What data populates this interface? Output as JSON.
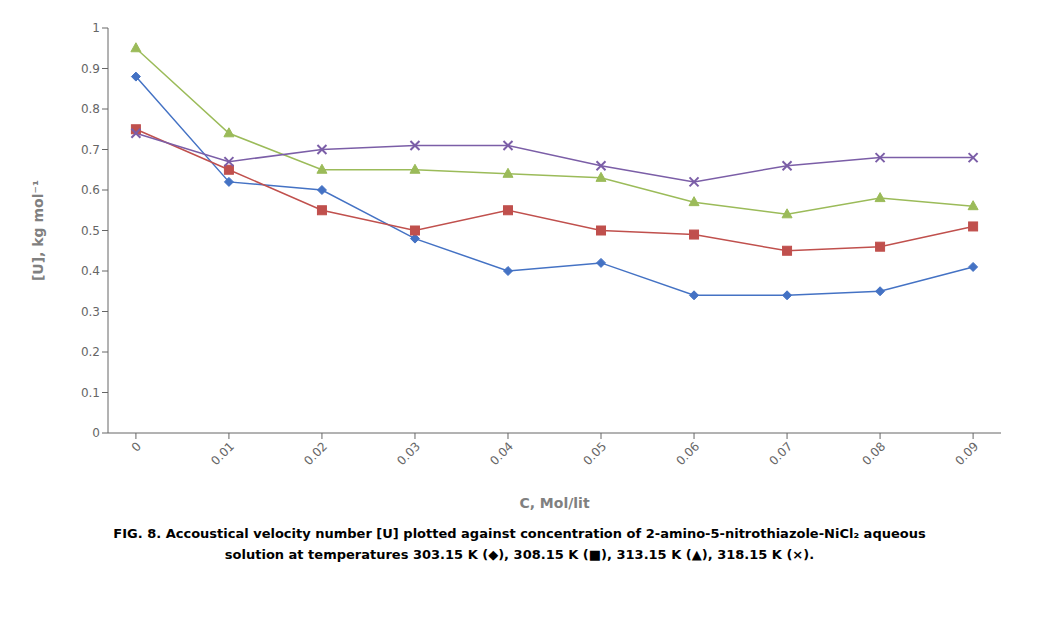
{
  "chart_data": {
    "type": "line",
    "x": [
      0,
      0.01,
      0.02,
      0.03,
      0.04,
      0.05,
      0.06,
      0.07,
      0.08,
      0.09
    ],
    "series": [
      {
        "color": "#4472C4",
        "marker": "diamond",
        "values": [
          0.88,
          0.62,
          0.6,
          0.48,
          0.4,
          0.42,
          0.34,
          0.34,
          0.35,
          0.41
        ]
      },
      {
        "color": "#C0504D",
        "marker": "square",
        "values": [
          0.75,
          0.65,
          0.55,
          0.5,
          0.55,
          0.5,
          0.49,
          0.45,
          0.46,
          0.51
        ]
      },
      {
        "color": "#9BBB59",
        "marker": "triangle",
        "values": [
          0.95,
          0.74,
          0.65,
          0.65,
          0.64,
          0.63,
          0.57,
          0.54,
          0.58,
          0.56
        ]
      },
      {
        "color": "#7B5EA7",
        "marker": "x",
        "values": [
          0.74,
          0.67,
          0.7,
          0.71,
          0.71,
          0.66,
          0.62,
          0.66,
          0.68,
          0.68
        ]
      }
    ],
    "xlabel": "C, Mol/lit",
    "ylabel": "[U], kg mol⁻¹",
    "xlim": [
      -0.003,
      0.093
    ],
    "xticks": [
      0,
      0.01,
      0.02,
      0.03,
      0.04,
      0.05,
      0.06,
      0.07,
      0.08,
      0.09
    ],
    "ylim": [
      0,
      1.0
    ],
    "yticks": [
      0,
      0.1,
      0.2,
      0.3,
      0.4,
      0.5,
      0.6,
      0.7,
      0.8,
      0.9,
      1
    ],
    "grid": false,
    "annotations": [
      "FIG. 8. Accoustical velocity number [U] plotted against concentration of 2-amino-5-nitrothiazole-NiCl₂ aqueous",
      "solution at temperatures 303.15 K (◆), 308.15 K (■), 313.15 K (▲), 318.15 K (×)."
    ]
  }
}
